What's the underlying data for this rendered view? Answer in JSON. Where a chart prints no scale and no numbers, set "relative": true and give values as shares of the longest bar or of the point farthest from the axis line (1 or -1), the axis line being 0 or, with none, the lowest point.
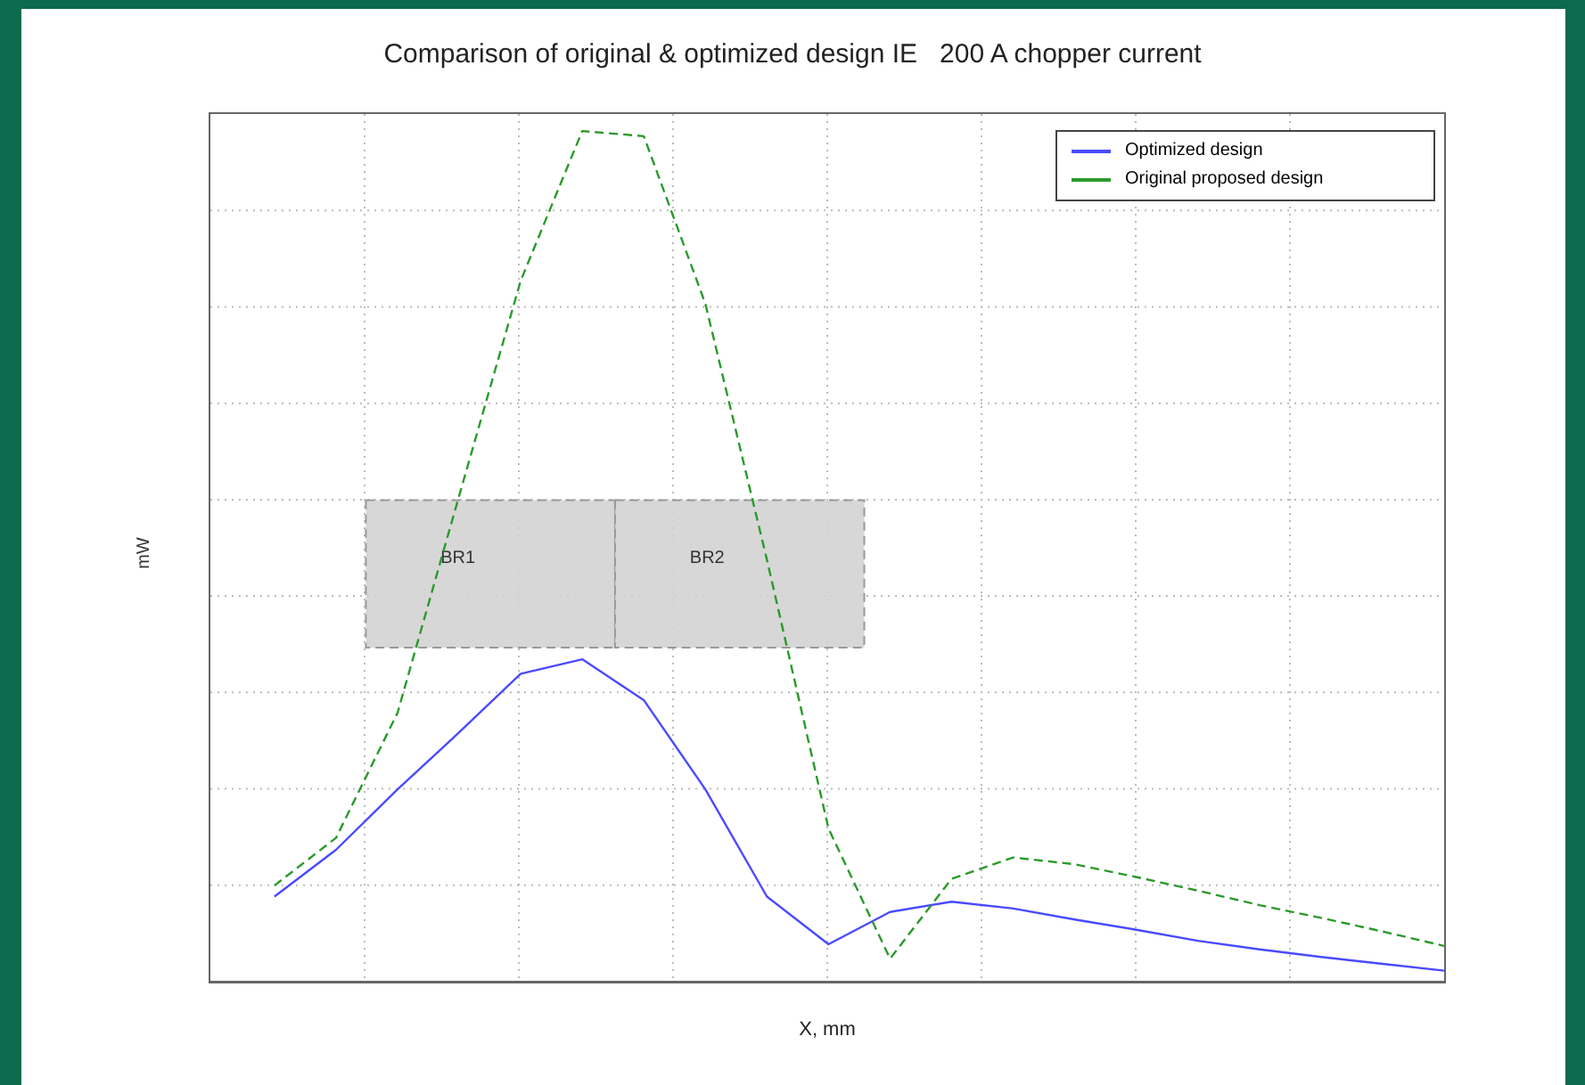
{
  "chart_data": {
    "type": "line",
    "title": "Comparison of original & optimized design IE   200 A chopper current",
    "xlabel": "X, mm",
    "ylabel": "mW",
    "relative": true,
    "grid": true,
    "legend": "top right",
    "categories": [
      null,
      null,
      null,
      null,
      null,
      null,
      null,
      null,
      null,
      null,
      null,
      null,
      null,
      null,
      null,
      null,
      null,
      null,
      null,
      null
    ],
    "annotations": [
      "BR1",
      "BR2"
    ],
    "series": [
      {
        "name": "Optimized design",
        "color": "#4a4aff",
        "line_style": "solid",
        "values": [
          0.1,
          0.155,
          0.226,
          0.293,
          0.362,
          0.379,
          0.331,
          0.226,
          0.1,
          0.044,
          0.082,
          0.094,
          0.086,
          0.073,
          0.061,
          0.048,
          0.038,
          0.029,
          0.021,
          0.013
        ]
      },
      {
        "name": "Original proposed design",
        "color": "#2a9a2a",
        "line_style": "dashed",
        "values": [
          0.113,
          0.169,
          0.316,
          0.571,
          0.824,
          1.0,
          0.994,
          0.797,
          0.496,
          0.18,
          0.027,
          0.121,
          0.146,
          0.138,
          0.123,
          0.107,
          0.09,
          0.075,
          0.059,
          0.042
        ]
      }
    ]
  }
}
